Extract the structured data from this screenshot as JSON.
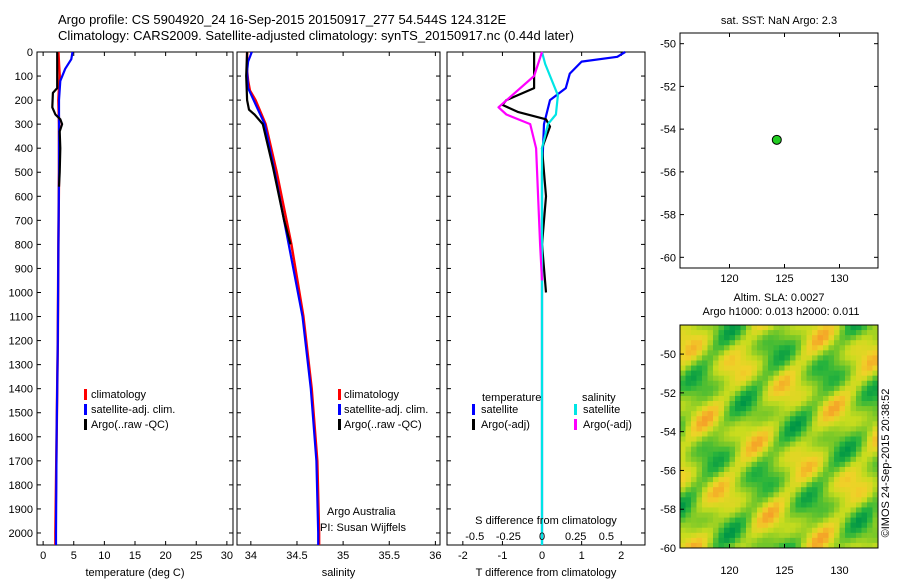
{
  "header": {
    "line1": "Argo profile: CS 5904920_24 16-Sep-2015 20150917_277 54.544S 124.312E",
    "line2": "Climatology: CARS2009. Satellite-adjusted climatology: synTS_20150917.nc (0.44d later)"
  },
  "colors": {
    "climatology": "#ff0000",
    "satellite": "#0000ff",
    "argo": "#000000",
    "sat_salinity": "#00e5e5",
    "argo_salinity": "#ff00ff",
    "marker": "#22cc22"
  },
  "watermark": "©IMOS 24-Sep-2015 20:38:52",
  "chart_data": [
    {
      "type": "line",
      "id": "temperature",
      "xlabel": "temperature (deg C)",
      "ylabel": "",
      "xlim": [
        -1,
        31
      ],
      "ylim": [
        2050,
        0
      ],
      "xticks": [
        "0",
        "5",
        "10",
        "15",
        "20",
        "25",
        "30"
      ],
      "yticks": [
        "0",
        "100",
        "200",
        "300",
        "400",
        "500",
        "600",
        "700",
        "800",
        "900",
        "1000",
        "1100",
        "1200",
        "1300",
        "1400",
        "1500",
        "1600",
        "1700",
        "1800",
        "1900",
        "2000"
      ],
      "legend": [
        "climatology",
        "satellite-adj. clim.",
        "Argo(..raw -QC)"
      ],
      "series": [
        {
          "name": "climatology",
          "color_key": "climatology",
          "points": [
            [
              2.5,
              0
            ],
            [
              2.6,
              50
            ],
            [
              2.7,
              100
            ],
            [
              2.6,
              150
            ],
            [
              2.5,
              200
            ],
            [
              2.6,
              300
            ],
            [
              2.6,
              500
            ],
            [
              2.5,
              800
            ],
            [
              2.4,
              1200
            ],
            [
              2.2,
              1600
            ],
            [
              2.0,
              2000
            ],
            [
              2.0,
              2050
            ]
          ]
        },
        {
          "name": "satellite-adj. clim.",
          "color_key": "satellite",
          "points": [
            [
              4.8,
              0
            ],
            [
              4.6,
              30
            ],
            [
              3.6,
              70
            ],
            [
              2.8,
              120
            ],
            [
              2.6,
              200
            ],
            [
              2.6,
              300
            ],
            [
              2.6,
              500
            ],
            [
              2.5,
              800
            ],
            [
              2.4,
              1200
            ],
            [
              2.2,
              1600
            ],
            [
              2.1,
              2000
            ],
            [
              2.1,
              2050
            ]
          ]
        },
        {
          "name": "Argo(..raw -QC)",
          "color_key": "argo",
          "points": [
            [
              2.3,
              0
            ],
            [
              2.3,
              150
            ],
            [
              1.6,
              170
            ],
            [
              1.5,
              230
            ],
            [
              2.0,
              260
            ],
            [
              2.8,
              280
            ],
            [
              3.1,
              300
            ],
            [
              2.7,
              330
            ],
            [
              2.8,
              400
            ],
            [
              2.7,
              500
            ],
            [
              2.6,
              560
            ]
          ]
        }
      ]
    },
    {
      "type": "line",
      "id": "salinity",
      "xlabel": "salinity",
      "ylabel": "",
      "xlim": [
        33.85,
        36.05
      ],
      "ylim": [
        2050,
        0
      ],
      "xticks": [
        "34",
        "34.5",
        "35",
        "35.5",
        "36"
      ],
      "legend": [
        "climatology",
        "satellite-adj. clim.",
        "Argo(..raw -QC)"
      ],
      "annotation": [
        "Argo Australia",
        "PI: Susan Wijffels"
      ],
      "series": [
        {
          "name": "climatology",
          "color_key": "climatology",
          "points": [
            [
              33.96,
              0
            ],
            [
              33.96,
              80
            ],
            [
              33.97,
              120
            ],
            [
              33.99,
              160
            ],
            [
              34.05,
              200
            ],
            [
              34.16,
              300
            ],
            [
              34.28,
              500
            ],
            [
              34.44,
              800
            ],
            [
              34.57,
              1100
            ],
            [
              34.66,
              1400
            ],
            [
              34.72,
              1700
            ],
            [
              34.74,
              2000
            ],
            [
              34.74,
              2050
            ]
          ]
        },
        {
          "name": "satellite-adj. clim.",
          "color_key": "satellite",
          "points": [
            [
              34.01,
              0
            ],
            [
              33.97,
              40
            ],
            [
              33.96,
              80
            ],
            [
              33.97,
              150
            ],
            [
              34.03,
              200
            ],
            [
              34.15,
              300
            ],
            [
              34.26,
              500
            ],
            [
              34.41,
              800
            ],
            [
              34.56,
              1100
            ],
            [
              34.65,
              1400
            ],
            [
              34.71,
              1700
            ],
            [
              34.73,
              2000
            ],
            [
              34.73,
              2050
            ]
          ]
        },
        {
          "name": "Argo(..raw -QC)",
          "color_key": "argo",
          "points": [
            [
              33.96,
              0
            ],
            [
              33.95,
              100
            ],
            [
              33.96,
              200
            ],
            [
              33.98,
              240
            ],
            [
              34.04,
              260
            ],
            [
              34.13,
              300
            ],
            [
              34.24,
              480
            ],
            [
              34.36,
              700
            ],
            [
              34.43,
              800
            ]
          ]
        }
      ]
    },
    {
      "type": "line",
      "id": "difference",
      "xlabel": "T difference from climatology",
      "top_label": "S difference from climatology",
      "xlim": [
        -2.4,
        2.6
      ],
      "ylim": [
        2050,
        0
      ],
      "xticks": [
        "-2",
        "-1",
        "0",
        "1",
        "2"
      ],
      "sxticks": [
        "-0.5",
        "-0.25",
        "0",
        "0.25",
        "0.5"
      ],
      "legend_headers": [
        "temperature",
        "salinity"
      ],
      "legend": [
        "satellite",
        "Argo(-adj)",
        "satellite",
        "Argo(-adj)"
      ],
      "series": [
        {
          "name": "temperature satellite",
          "color_key": "satellite",
          "points": [
            [
              2.1,
              0
            ],
            [
              1.9,
              20
            ],
            [
              1.0,
              40
            ],
            [
              0.7,
              90
            ],
            [
              0.6,
              150
            ],
            [
              0.2,
              200
            ],
            [
              0.05,
              300
            ],
            [
              0.0,
              500
            ],
            [
              0.0,
              1000
            ],
            [
              0.0,
              2000
            ],
            [
              0.0,
              2050
            ]
          ]
        },
        {
          "name": "temperature Argo(-adj)",
          "color_key": "argo",
          "points": [
            [
              -0.2,
              0
            ],
            [
              -0.2,
              150
            ],
            [
              -0.9,
              200
            ],
            [
              -1.0,
              220
            ],
            [
              -0.6,
              250
            ],
            [
              0.1,
              280
            ],
            [
              0.2,
              310
            ],
            [
              0.0,
              400
            ],
            [
              0.1,
              600
            ],
            [
              0.0,
              800
            ],
            [
              0.1,
              1000
            ]
          ]
        },
        {
          "name": "salinity satellite",
          "color_key": "sat_salinity",
          "points": [
            [
              0.0,
              0
            ],
            [
              0.08,
              50
            ],
            [
              0.4,
              180
            ],
            [
              0.35,
              260
            ],
            [
              0.15,
              300
            ],
            [
              0.0,
              400
            ],
            [
              0.0,
              1000
            ],
            [
              0.0,
              2000
            ],
            [
              0.0,
              2050
            ]
          ]
        },
        {
          "name": "salinity Argo(-adj)",
          "color_key": "argo_salinity",
          "points": [
            [
              0.0,
              0
            ],
            [
              -0.2,
              100
            ],
            [
              -1.1,
              230
            ],
            [
              -0.9,
              260
            ],
            [
              -0.3,
              300
            ],
            [
              -0.15,
              400
            ],
            [
              -0.1,
              600
            ],
            [
              -0.05,
              800
            ],
            [
              0.0,
              950
            ]
          ]
        }
      ]
    },
    {
      "type": "scatter",
      "id": "position",
      "title": "sat. SST: NaN Argo: 2.3",
      "xlim": [
        115.5,
        133.5
      ],
      "ylim": [
        -60.5,
        -49.5
      ],
      "xticks": [
        "120",
        "125",
        "130"
      ],
      "yticks": [
        "-50",
        "-52",
        "-54",
        "-56",
        "-58",
        "-60"
      ],
      "points": [
        [
          124.3,
          -54.5
        ]
      ]
    },
    {
      "type": "heatmap",
      "id": "sla",
      "title": [
        "Altim. SLA: 0.0027",
        "Argo h1000: 0.013 h2000: 0.011"
      ],
      "xlim": [
        115.5,
        133.5
      ],
      "ylim": [
        -60,
        -48.5
      ],
      "xticks": [
        "120",
        "125",
        "130"
      ],
      "yticks": [
        "-50",
        "-52",
        "-54",
        "-56",
        "-58",
        "-60"
      ]
    }
  ]
}
